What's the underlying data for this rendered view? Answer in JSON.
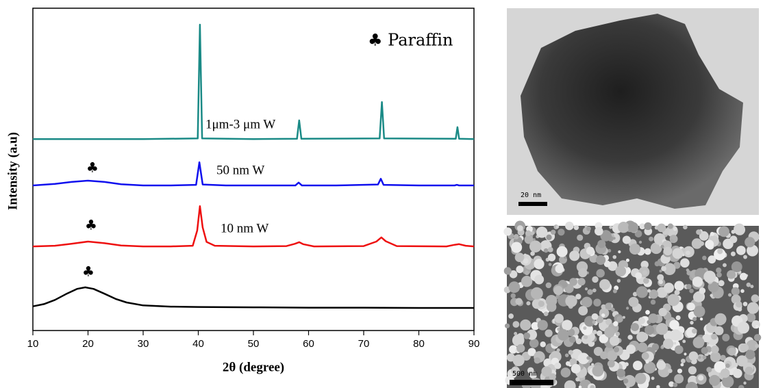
{
  "chart_data": {
    "type": "line",
    "xlabel": "2θ (degree)",
    "ylabel": "Intensity (a.u)",
    "xlim": [
      10,
      90
    ],
    "xticks": [
      10,
      20,
      30,
      40,
      50,
      60,
      70,
      80,
      90
    ],
    "ylim": [
      0,
      100
    ],
    "annotations": [
      "♣ Paraffin",
      "♣",
      "♣",
      "♣"
    ],
    "series": [
      {
        "name": "1μm-3 μm W",
        "color": "#1a8a86",
        "x": [
          10,
          30,
          39.9,
          40.3,
          40.7,
          50,
          57.9,
          58.3,
          58.7,
          72.9,
          73.3,
          73.7,
          86.7,
          87,
          87.3,
          90
        ],
        "values": [
          59.4,
          59.4,
          59.6,
          94.9,
          59.6,
          59.4,
          59.5,
          65.2,
          59.5,
          59.6,
          70.9,
          59.6,
          59.5,
          63.1,
          59.5,
          59.4
        ]
      },
      {
        "name": "50 nm W",
        "color": "#1010ee",
        "x": [
          10,
          14,
          17,
          20,
          23,
          26,
          30,
          35,
          39.6,
          40.2,
          40.8,
          45,
          57.6,
          58.2,
          58.8,
          65,
          72.6,
          73.1,
          73.6,
          80,
          86.5,
          86.9,
          87.3,
          90
        ],
        "values": [
          45,
          45.5,
          46.1,
          46.5,
          46.1,
          45.4,
          45,
          45,
          45.2,
          52.2,
          45.3,
          45,
          45,
          45.9,
          45,
          45,
          45.3,
          47.1,
          45.2,
          45,
          45,
          45.2,
          45,
          45
        ]
      },
      {
        "name": "10 nm W",
        "color": "#ee1010",
        "x": [
          10,
          14,
          17,
          20,
          23,
          26,
          30,
          35,
          39,
          39.8,
          40.3,
          40.8,
          41.5,
          43,
          50,
          56,
          57.5,
          58.3,
          59,
          61,
          70,
          72.3,
          73.2,
          74,
          76,
          85,
          86.5,
          87.3,
          88.5,
          90
        ],
        "values": [
          26.1,
          26.3,
          26.9,
          27.6,
          27.1,
          26.4,
          26.1,
          26.1,
          26.3,
          31,
          38.6,
          32,
          27.5,
          26.3,
          26.1,
          26.2,
          26.9,
          27.4,
          26.8,
          26.1,
          26.2,
          27.6,
          28.9,
          27.7,
          26.2,
          26.1,
          26.6,
          26.8,
          26.3,
          26.1
        ]
      },
      {
        "color": "#000000",
        "x": [
          10,
          12,
          14,
          16,
          18,
          19.5,
          21,
          23,
          25,
          27,
          30,
          35,
          40,
          50,
          60,
          70,
          80,
          90
        ],
        "values": [
          7.5,
          8.2,
          9.5,
          11.3,
          12.9,
          13.4,
          12.9,
          11.4,
          9.8,
          8.7,
          7.8,
          7.4,
          7.3,
          7.2,
          7.1,
          7.1,
          7.0,
          7.0
        ]
      }
    ]
  },
  "images": [
    {
      "scale_bar": "20 nm"
    },
    {
      "scale_bar": "500 nm"
    }
  ]
}
